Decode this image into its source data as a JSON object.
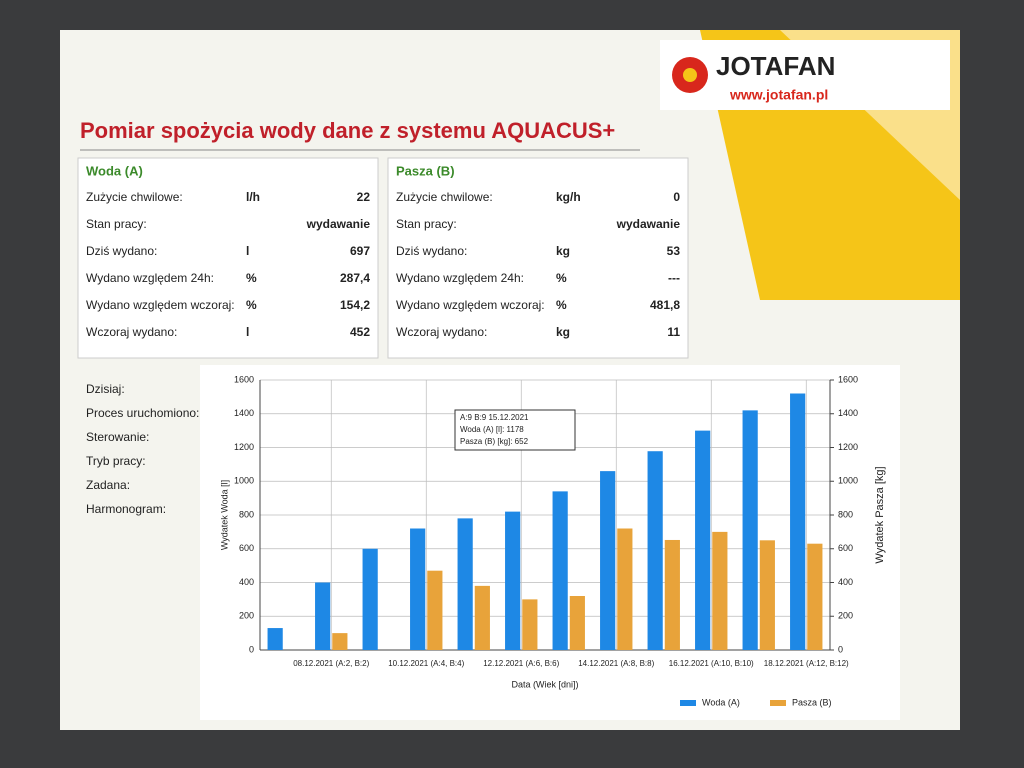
{
  "header": {
    "title": "Pomiar spożycia wody  dane z systemu AQUACUS+",
    "logo": "JOTAFAN",
    "url": "www.jotafan.pl"
  },
  "woda": {
    "title": "Woda  (A)",
    "rows": [
      {
        "label": "Zużycie chwilowe:",
        "unit": "l/h",
        "value": "22"
      },
      {
        "label": "Stan pracy:",
        "value": "wydawanie"
      },
      {
        "label": "Dziś wydano:",
        "unit": "l",
        "value": "697"
      },
      {
        "label": "Wydano względem 24h:",
        "unit": "%",
        "value": "287,4"
      },
      {
        "label": "Wydano względem wczoraj:",
        "unit": "%",
        "value": "154,2"
      },
      {
        "label": "Wczoraj wydano:",
        "unit": "l",
        "value": "452"
      }
    ]
  },
  "pasza": {
    "title": "Pasza (B)",
    "rows": [
      {
        "label": "Zużycie chwilowe:",
        "unit": "kg/h",
        "value": "0"
      },
      {
        "label": "Stan pracy:",
        "value": "wydawanie"
      },
      {
        "label": "Dziś wydano:",
        "unit": "kg",
        "value": "53"
      },
      {
        "label": "Wydano względem 24h:",
        "unit": "%",
        "value": "---"
      },
      {
        "label": "Wydano względem wczoraj:",
        "unit": "%",
        "value": "481,8"
      },
      {
        "label": "Wczoraj wydano:",
        "unit": "kg",
        "value": "11"
      }
    ]
  },
  "status_labels": [
    "Dzisiaj:",
    "Proces uruchomiono:",
    "Sterowanie:",
    "Tryb pracy:",
    "Zadana:",
    "Harmonogram:"
  ],
  "chart_data": {
    "type": "bar",
    "categories": [
      null,
      "08.12.2021 (A:2, B:2)",
      null,
      "10.12.2021 (A:4, B:4)",
      null,
      "12.12.2021 (A:6, B:6)",
      null,
      "14.12.2021 (A:8, B:8)",
      null,
      "16.12.2021 (A:10, B:10)",
      null,
      "18.12.2021 (A:12, B:12)"
    ],
    "series": [
      {
        "name": "Woda (A)",
        "color": "#1e88e5",
        "values": [
          130,
          400,
          600,
          720,
          780,
          820,
          940,
          1060,
          1178,
          1300,
          1420,
          1520
        ]
      },
      {
        "name": "Pasza (B)",
        "color": "#e8a33a",
        "axis": "y2",
        "values": [
          null,
          100,
          null,
          470,
          380,
          300,
          320,
          720,
          652,
          700,
          650,
          630
        ]
      }
    ],
    "xlabel": "Data (Wiek [dni])",
    "ylabel": "Wydatek Woda [l]",
    "y2label": "Wydatek Pasza [kg]",
    "ylim": [
      0,
      1600
    ],
    "yticks": [
      0,
      200,
      400,
      600,
      800,
      1000,
      1200,
      1400,
      1600
    ],
    "y2lim": [
      0,
      1600
    ],
    "y2ticks": [
      0,
      200,
      400,
      600,
      800,
      1000,
      1200,
      1400,
      1600
    ],
    "grid": true,
    "legend": "bottom-right",
    "annotation": [
      "A:9  B:9  15.12.2021",
      "Woda (A) [l]: 1178",
      "Pasza (B) [kg]: 652"
    ]
  }
}
